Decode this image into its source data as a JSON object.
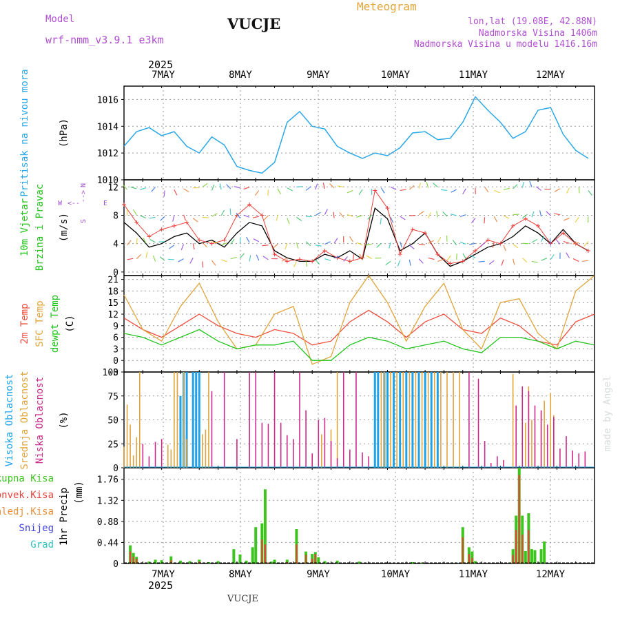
{
  "header": {
    "model_label": "Model",
    "model_name": "wrf-nmm_v3.9.1  e3km",
    "title": "Meteogram",
    "station": "VUCJE",
    "coords": "lon,lat (19.08E, 42.88N)",
    "elevation": "Nadmorska Visina 1406m",
    "model_elevation": "Nadmorska Visina u modelu 1416.16m",
    "footer_station": "VUCJE",
    "watermark": "made by Angel"
  },
  "colors": {
    "pressure": "#2aa7e6",
    "wind_speed": "#000000",
    "gust": "#e8403a",
    "temp_2m": "#ee4c3c",
    "temp_sfc": "#e0a43a",
    "dewpoint": "#22c41c",
    "cloud_high": "#1fa2e8",
    "cloud_mid": "#e0a43a",
    "cloud_low": "#cc2a8a",
    "precip_total": "#3ec41e",
    "precip_conv": "#e8403a",
    "precip_frozen": "#e8903a",
    "snow": "#4040e0",
    "hail": "#30c0c0",
    "compass": "#a050d0"
  },
  "time_axis": {
    "days_top": [
      "7MAY",
      "8MAY",
      "9MAY",
      "10MAY",
      "11MAY",
      "12MAY"
    ],
    "days_bottom": [
      "7MAY",
      "8MAY",
      "9MAY",
      "10MAY",
      "11MAY",
      "12MAY"
    ],
    "year": "2025"
  },
  "compass": {
    "n": "N",
    "s": "S",
    "e": "E",
    "w": "W",
    "ne": "-->",
    "sw": "<--"
  },
  "chart_data": [
    {
      "type": "line",
      "id": "pressure",
      "ylabel_main": "Pritisak na nivou mora",
      "ylabel_unit": "(hPa)",
      "ylim": [
        1010,
        1017
      ],
      "yticks": [
        "1010",
        "1012",
        "1014",
        "1016"
      ],
      "x": [
        0,
        4,
        8,
        12,
        16,
        20,
        24,
        28,
        32,
        36,
        40,
        44,
        48,
        52,
        56,
        60,
        64,
        68,
        72,
        76,
        80,
        84,
        88,
        92,
        96,
        100,
        104,
        108,
        112,
        116,
        120,
        124,
        128,
        132,
        136,
        140,
        144,
        148
      ],
      "values": [
        1012.5,
        1013.6,
        1013.9,
        1013.3,
        1013.6,
        1012.5,
        1012.0,
        1013.2,
        1012.6,
        1011.0,
        1010.7,
        1010.5,
        1011.3,
        1014.3,
        1015.1,
        1014.0,
        1013.8,
        1012.5,
        1012.0,
        1011.6,
        1012.0,
        1011.8,
        1012.4,
        1013.5,
        1013.6,
        1013.0,
        1013.1,
        1014.3,
        1016.2,
        1015.2,
        1014.3,
        1013.1,
        1013.6,
        1015.2,
        1015.4,
        1013.4,
        1012.2,
        1011.6
      ]
    },
    {
      "type": "line",
      "id": "wind",
      "ylabel_main": "10m Vjetar",
      "ylabel_second": "Brzina i Pravac",
      "ylabel_unit": "(m/s)",
      "ylim": [
        -0.5,
        13
      ],
      "yticks": [
        "0",
        "4",
        "8",
        "12"
      ],
      "series": [
        {
          "name": "speed",
          "x": [
            0,
            4,
            8,
            12,
            16,
            20,
            24,
            28,
            32,
            36,
            40,
            44,
            48,
            52,
            56,
            60,
            64,
            68,
            72,
            76,
            80,
            84,
            88,
            92,
            96,
            100,
            104,
            108,
            112,
            116,
            120,
            124,
            128,
            132,
            136,
            140,
            144,
            148
          ],
          "values": [
            7.0,
            5.5,
            3.5,
            4.0,
            5.0,
            5.5,
            4.0,
            4.5,
            3.5,
            5.5,
            7.0,
            6.5,
            3.0,
            2.0,
            1.5,
            1.5,
            2.5,
            2.0,
            3.0,
            1.8,
            9.0,
            7.5,
            3.0,
            4.0,
            5.5,
            2.5,
            0.8,
            1.5,
            2.5,
            3.5,
            4.0,
            5.0,
            6.5,
            5.5,
            4.0,
            6.0,
            4.0,
            3.0
          ]
        },
        {
          "name": "gust",
          "x": [
            0,
            4,
            8,
            12,
            16,
            20,
            24,
            28,
            32,
            36,
            40,
            44,
            48,
            52,
            56,
            60,
            64,
            68,
            72,
            76,
            80,
            84,
            88,
            92,
            96,
            100,
            104,
            108,
            112,
            116,
            120,
            124,
            128,
            132,
            136,
            140,
            144,
            148
          ],
          "values": [
            9.5,
            7.0,
            5.0,
            6.0,
            6.5,
            7.0,
            4.5,
            4.0,
            4.5,
            8.0,
            9.5,
            8.0,
            2.5,
            1.5,
            1.8,
            1.5,
            3.0,
            2.0,
            1.5,
            2.0,
            11.5,
            9.0,
            2.5,
            6.0,
            5.5,
            2.5,
            1.2,
            1.5,
            3.0,
            4.5,
            4.0,
            6.5,
            7.5,
            6.5,
            4.0,
            5.5,
            4.0,
            3.0
          ]
        }
      ]
    },
    {
      "type": "line",
      "id": "temperature",
      "ylabel_a": "2m Temp",
      "ylabel_b": "SFC Temp",
      "ylabel_c": "dewpt Temp",
      "ylabel_unit": "(C)",
      "ylim": [
        -3,
        22
      ],
      "yticks": [
        "-3",
        "0",
        "3",
        "6",
        "9",
        "12",
        "15",
        "18",
        "21"
      ],
      "series": [
        {
          "name": "2m",
          "x": [
            0,
            6,
            12,
            18,
            24,
            30,
            36,
            42,
            48,
            54,
            60,
            66,
            72,
            78,
            84,
            90,
            96,
            102,
            108,
            114,
            120,
            126,
            132,
            138,
            144,
            150
          ],
          "values": [
            11,
            8,
            6,
            9,
            12,
            9,
            7,
            6,
            8,
            7,
            4,
            5,
            10,
            13,
            10,
            6,
            10,
            12,
            8,
            7,
            11,
            9,
            5,
            4,
            10,
            12
          ]
        },
        {
          "name": "sfc",
          "x": [
            0,
            6,
            12,
            18,
            24,
            30,
            36,
            42,
            48,
            54,
            60,
            66,
            72,
            78,
            84,
            90,
            96,
            102,
            108,
            114,
            120,
            126,
            132,
            138,
            144,
            150
          ],
          "values": [
            17,
            8,
            5,
            14,
            20,
            10,
            3,
            4,
            12,
            14,
            -1,
            1,
            15,
            22,
            15,
            5,
            14,
            20,
            8,
            3,
            15,
            16,
            7,
            3,
            18,
            22
          ]
        },
        {
          "name": "dewpt",
          "x": [
            0,
            6,
            12,
            18,
            24,
            30,
            36,
            42,
            48,
            54,
            60,
            66,
            72,
            78,
            84,
            90,
            96,
            102,
            108,
            114,
            120,
            126,
            132,
            138,
            144,
            150
          ],
          "values": [
            7,
            6,
            4,
            6,
            8,
            5,
            3,
            4,
            4,
            5,
            0,
            0,
            4,
            6,
            5,
            3,
            4,
            5,
            3,
            2,
            6,
            6,
            5,
            3,
            5,
            4
          ]
        }
      ]
    },
    {
      "type": "bar",
      "id": "clouds",
      "ylabel_a": "Visoka Oblacnost",
      "ylabel_b": "Srednja Oblacnost",
      "ylabel_c": "Niska Oblacnost",
      "ylabel_unit": "(%)",
      "ylim": [
        0,
        100
      ],
      "yticks": [
        "0",
        "25",
        "50",
        "75",
        "100"
      ],
      "series": [
        {
          "name": "high",
          "x": [
            18,
            19,
            20,
            22,
            23,
            24,
            80,
            81,
            83,
            84,
            86,
            88,
            90,
            92,
            94,
            96,
            98,
            100
          ],
          "values": [
            75,
            100,
            100,
            100,
            100,
            100,
            100,
            100,
            100,
            100,
            100,
            100,
            100,
            100,
            100,
            100,
            100,
            100
          ]
        },
        {
          "name": "mid",
          "x": [
            0,
            1,
            2,
            3,
            4,
            5,
            14,
            15,
            16,
            17,
            19,
            20,
            25,
            26,
            27,
            63,
            66,
            68,
            82,
            83,
            85,
            87,
            89,
            91,
            93,
            95,
            97,
            99,
            101,
            103,
            105,
            107,
            124,
            128,
            129,
            130,
            131,
            133,
            134,
            136,
            137
          ],
          "values": [
            22,
            66,
            45,
            13,
            32,
            100,
            24,
            19,
            100,
            100,
            100,
            30,
            35,
            40,
            100,
            35,
            40,
            100,
            100,
            100,
            100,
            100,
            100,
            100,
            100,
            100,
            100,
            100,
            100,
            100,
            100,
            100,
            98,
            47,
            85,
            50,
            25,
            58,
            70,
            78,
            55
          ]
        },
        {
          "name": "low",
          "x": [
            6,
            8,
            10,
            12,
            28,
            32,
            36,
            40,
            42,
            44,
            46,
            48,
            50,
            52,
            54,
            56,
            58,
            60,
            62,
            64,
            66,
            68,
            70,
            72,
            74,
            76,
            78,
            110,
            113,
            115,
            117,
            119,
            121,
            125,
            127,
            129,
            131,
            133,
            135,
            137,
            139,
            141,
            143,
            145,
            147
          ],
          "values": [
            25,
            12,
            27,
            30,
            80,
            100,
            30,
            100,
            100,
            47,
            46,
            100,
            47,
            34,
            30,
            100,
            60,
            15,
            50,
            52,
            28,
            10,
            100,
            19,
            100,
            16,
            12,
            100,
            93,
            28,
            5,
            12,
            8,
            65,
            85,
            80,
            65,
            60,
            45,
            53,
            20,
            33,
            18,
            15,
            17
          ]
        }
      ]
    },
    {
      "type": "bar",
      "id": "precip",
      "legend": [
        "Ukupna Kisa",
        "Konvek.Kisa",
        "Zaledj.Kisa",
        "Snijeg",
        "Grad"
      ],
      "ylabel_main": "1hr Precip",
      "ylabel_unit": "(mm)",
      "ylim": [
        0,
        2.0
      ],
      "yticks": [
        "0",
        "0.44",
        "0.88",
        "1.32",
        "1.76"
      ],
      "series": [
        {
          "name": "total",
          "x": [
            2,
            3,
            4,
            8,
            10,
            12,
            15,
            18,
            21,
            24,
            27,
            30,
            35,
            37,
            39,
            41,
            42,
            44,
            45,
            46,
            47,
            48,
            52,
            55,
            58,
            60,
            61,
            62,
            64,
            68,
            75,
            92,
            95,
            108,
            110,
            111,
            112,
            124,
            125,
            126,
            127,
            128,
            129,
            130,
            131,
            133,
            134
          ],
          "values": [
            0.38,
            0.22,
            0.14,
            0.04,
            0.08,
            0.07,
            0.15,
            0.06,
            0.05,
            0.08,
            0.03,
            0.05,
            0.3,
            0.19,
            0.06,
            0.34,
            0.76,
            0.84,
            1.55,
            0.02,
            0.04,
            0.08,
            0.08,
            0.72,
            0.25,
            0.2,
            0.24,
            0.13,
            0.05,
            0.06,
            0.04,
            0.03,
            0.02,
            0.76,
            0.34,
            0.25,
            0.05,
            0.3,
            1.0,
            2.0,
            1.0,
            0.26,
            1.05,
            0.3,
            0.28,
            0.3,
            0.46
          ]
        },
        {
          "name": "convective",
          "x": [
            2,
            3,
            4,
            15,
            24,
            44,
            45,
            46,
            52,
            55,
            58,
            60,
            61,
            108,
            110,
            111,
            124,
            125,
            126,
            127,
            129
          ],
          "values": [
            0.25,
            0.14,
            0.1,
            0.07,
            0.04,
            0.5,
            0.4,
            0.02,
            0.03,
            0.4,
            0.18,
            0.1,
            0.2,
            0.55,
            0.2,
            0.12,
            0.18,
            0.7,
            1.85,
            0.6,
            0.7
          ]
        }
      ]
    }
  ]
}
